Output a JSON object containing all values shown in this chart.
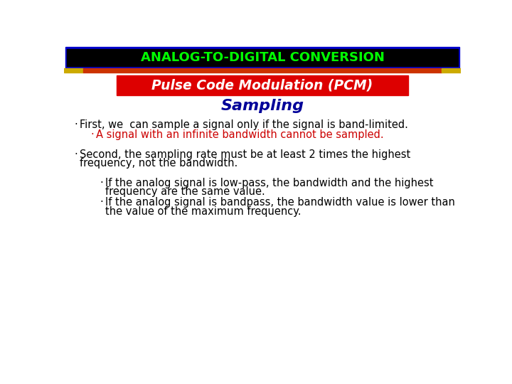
{
  "title": "ANALOG-TO-DIGITAL CONVERSION",
  "title_color": "#00ff00",
  "title_bg": "#000000",
  "title_border_color": "#0000cc",
  "subtitle_box_text": "Pulse Code Modulation (PCM)",
  "subtitle_box_bg": "#dd0000",
  "subtitle_box_text_color": "#ffffff",
  "section_title": "Sampling",
  "section_title_color": "#000099",
  "bg_color": "#ffffff",
  "stripe_color_orange": "#cc3300",
  "stripe_color_yellow": "#ccaa00",
  "bullet": "·",
  "line1": "First, we  can sample a signal only if the signal is band-limited.",
  "line1_color": "#000000",
  "line2": "A signal with an infinite bandwidth cannot be sampled.",
  "line2_color": "#cc0000",
  "line3a": "Second, the sampling rate must be at least 2 times the highest",
  "line3b": "frequency, not the bandwidth.",
  "line3_color": "#000000",
  "line4a": "If the analog signal is low-pass, the bandwidth and the highest",
  "line4b": "frequency are the same value.",
  "line4_color": "#000000",
  "line5a": "If the analog signal is bandpass, the bandwidth value is lower than",
  "line5b": "the value of the maximum frequency.",
  "line5_color": "#000000"
}
